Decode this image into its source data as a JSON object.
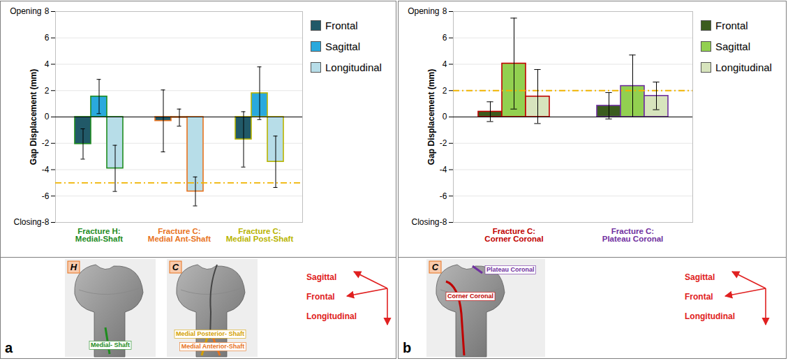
{
  "chart_data": [
    {
      "panel": "a",
      "type": "bar",
      "y_label": "Gap Displacement (mm)",
      "categories": [
        "Fracture H: Medial-Shaft",
        "Fracture C: Medial Ant-Shaft",
        "Fracture C: Medial Post-Shaft"
      ],
      "colors": [
        "#1e8c1e",
        "#e8731e",
        "#b8b400"
      ],
      "series": [
        {
          "name": "Frontal",
          "color": "#215968",
          "values": [
            -2.05,
            -0.3,
            -1.7
          ],
          "errors": [
            1.15,
            2.35,
            2.1
          ]
        },
        {
          "name": "Sagittal",
          "color": "#2aa9dd",
          "values": [
            1.55,
            -0.05,
            1.8
          ],
          "errors": [
            1.3,
            0.65,
            2.0
          ]
        },
        {
          "name": "Longitudinal",
          "color": "#b7dde8",
          "values": [
            -3.9,
            -5.65,
            -3.4
          ],
          "errors": [
            1.75,
            1.1,
            1.95
          ]
        }
      ],
      "ylim": [
        -8,
        8
      ],
      "yticks": [
        -8,
        -6,
        -4,
        -2,
        0,
        2,
        4,
        6,
        8
      ],
      "annotations": [
        {
          "text": "Opening",
          "y": 8
        },
        {
          "text": "Closing",
          "y": -8
        }
      ],
      "reference_line": -5,
      "grid": true,
      "legend": "right",
      "schematic": {
        "images": [
          {
            "letter": "H",
            "labels": [
              {
                "text": "Medial- Shaft",
                "color": "#1e8c1e"
              }
            ]
          },
          {
            "letter": "C",
            "labels": [
              {
                "text": "Medial Posterior- Shaft",
                "color": "#d4a000"
              },
              {
                "text": "Medial Anterior-Shaft",
                "color": "#e8731e"
              }
            ]
          }
        ],
        "directions": [
          "Sagittal",
          "Frontal",
          "Longitudinal"
        ]
      }
    },
    {
      "panel": "b",
      "type": "bar",
      "y_label": "Gap Displacement (mm)",
      "categories": [
        "Fracture C: Corner Coronal",
        "Fracture C: Plateau Coronal"
      ],
      "colors": [
        "#c00000",
        "#7030a0"
      ],
      "series": [
        {
          "name": "Frontal",
          "color": "#3b5c1e",
          "values": [
            0.4,
            0.85
          ],
          "errors": [
            0.75,
            1.0
          ]
        },
        {
          "name": "Sagittal",
          "color": "#92d050",
          "values": [
            4.05,
            2.35
          ],
          "errors": [
            3.45,
            2.35
          ]
        },
        {
          "name": "Longitudinal",
          "color": "#d7e4bd",
          "values": [
            1.55,
            1.6
          ],
          "errors": [
            2.05,
            1.05
          ]
        }
      ],
      "ylim": [
        -8,
        8
      ],
      "yticks": [
        -8,
        -6,
        -4,
        -2,
        0,
        2,
        4,
        6,
        8
      ],
      "annotations": [
        {
          "text": "Opening",
          "y": 8
        },
        {
          "text": "Closing",
          "y": -8
        }
      ],
      "reference_line": 2,
      "grid": true,
      "legend": "right",
      "schematic": {
        "images": [
          {
            "letter": "C",
            "labels": [
              {
                "text": "Plateau Coronal",
                "color": "#7030a0"
              },
              {
                "text": "Corner Coronal",
                "color": "#c00000"
              }
            ]
          }
        ],
        "directions": [
          "Sagittal",
          "Frontal",
          "Longitudinal"
        ]
      }
    }
  ]
}
